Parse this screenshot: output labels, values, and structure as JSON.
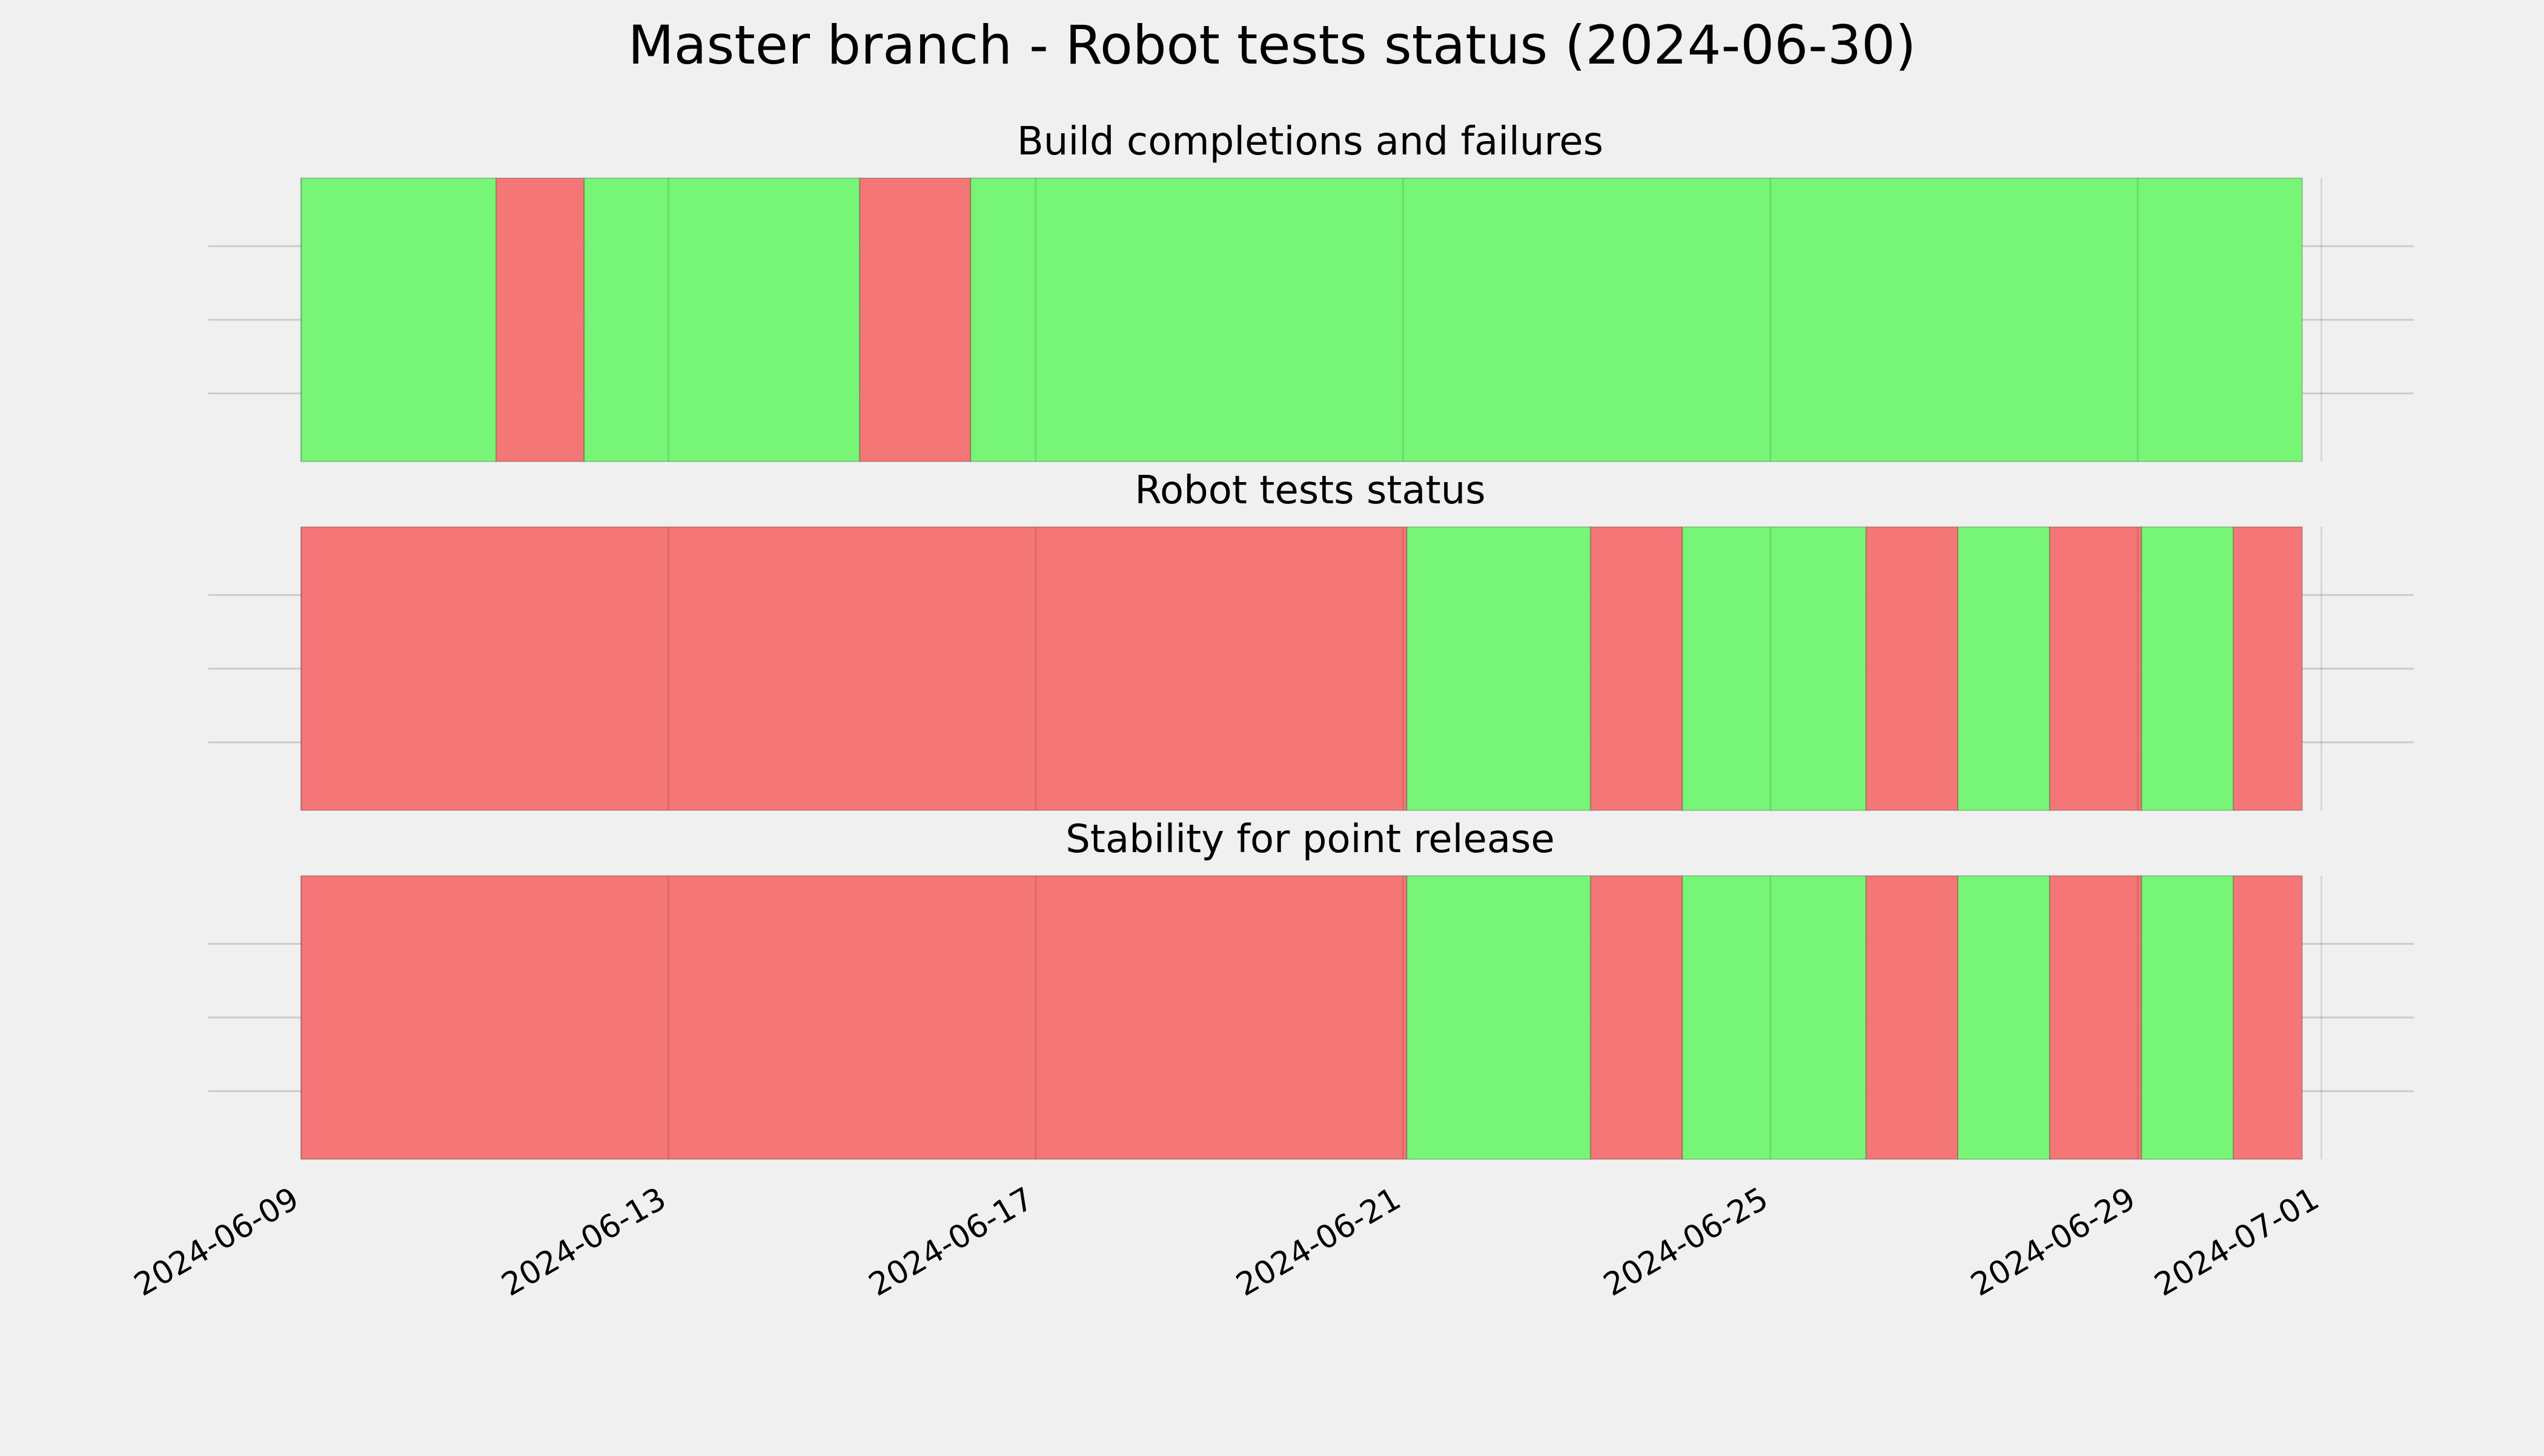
{
  "chart_data": {
    "type": "timeline",
    "title": "Master branch - Robot tests status (2024-06-30)",
    "x_axis": {
      "range": [
        "2024-06-09",
        "2024-07-01T08:00"
      ],
      "tick_labels": [
        "2024-06-09",
        "2024-06-13",
        "2024-06-17",
        "2024-06-21",
        "2024-06-25",
        "2024-06-29",
        "2024-07-01"
      ]
    },
    "grid": true,
    "colors": {
      "pass": "#77f577",
      "fail": "#f57676",
      "background": "#f0f0f0",
      "grid": "#cbcbcb"
    },
    "panels": [
      {
        "title": "Build completions and failures",
        "segments": [
          {
            "start": "2024-06-09T00:00",
            "end": "2024-06-11T03:00",
            "status": "pass"
          },
          {
            "start": "2024-06-11T03:00",
            "end": "2024-06-12T02:00",
            "status": "fail"
          },
          {
            "start": "2024-06-12T02:00",
            "end": "2024-06-15T02:00",
            "status": "pass"
          },
          {
            "start": "2024-06-15T02:00",
            "end": "2024-06-16T07:00",
            "status": "fail"
          },
          {
            "start": "2024-06-16T07:00",
            "end": "2024-06-30T19:00",
            "status": "pass"
          }
        ]
      },
      {
        "title": "Robot tests status",
        "segments": [
          {
            "start": "2024-06-09T00:00",
            "end": "2024-06-21T01:00",
            "status": "fail"
          },
          {
            "start": "2024-06-21T01:00",
            "end": "2024-06-23T01:00",
            "status": "pass"
          },
          {
            "start": "2024-06-23T01:00",
            "end": "2024-06-24T01:00",
            "status": "fail"
          },
          {
            "start": "2024-06-24T01:00",
            "end": "2024-06-26T01:00",
            "status": "pass"
          },
          {
            "start": "2024-06-26T01:00",
            "end": "2024-06-27T01:00",
            "status": "fail"
          },
          {
            "start": "2024-06-27T01:00",
            "end": "2024-06-28T01:00",
            "status": "pass"
          },
          {
            "start": "2024-06-28T01:00",
            "end": "2024-06-29T01:00",
            "status": "fail"
          },
          {
            "start": "2024-06-29T01:00",
            "end": "2024-06-30T01:00",
            "status": "pass"
          },
          {
            "start": "2024-06-30T01:00",
            "end": "2024-06-30T19:00",
            "status": "fail"
          }
        ]
      },
      {
        "title": "Stability for point release",
        "segments": [
          {
            "start": "2024-06-09T00:00",
            "end": "2024-06-21T01:00",
            "status": "fail"
          },
          {
            "start": "2024-06-21T01:00",
            "end": "2024-06-23T01:00",
            "status": "pass"
          },
          {
            "start": "2024-06-23T01:00",
            "end": "2024-06-24T01:00",
            "status": "fail"
          },
          {
            "start": "2024-06-24T01:00",
            "end": "2024-06-26T01:00",
            "status": "pass"
          },
          {
            "start": "2024-06-26T01:00",
            "end": "2024-06-27T01:00",
            "status": "fail"
          },
          {
            "start": "2024-06-27T01:00",
            "end": "2024-06-28T01:00",
            "status": "pass"
          },
          {
            "start": "2024-06-28T01:00",
            "end": "2024-06-29T01:00",
            "status": "fail"
          },
          {
            "start": "2024-06-29T01:00",
            "end": "2024-06-30T01:00",
            "status": "pass"
          },
          {
            "start": "2024-06-30T01:00",
            "end": "2024-06-30T19:00",
            "status": "fail"
          }
        ]
      }
    ]
  }
}
